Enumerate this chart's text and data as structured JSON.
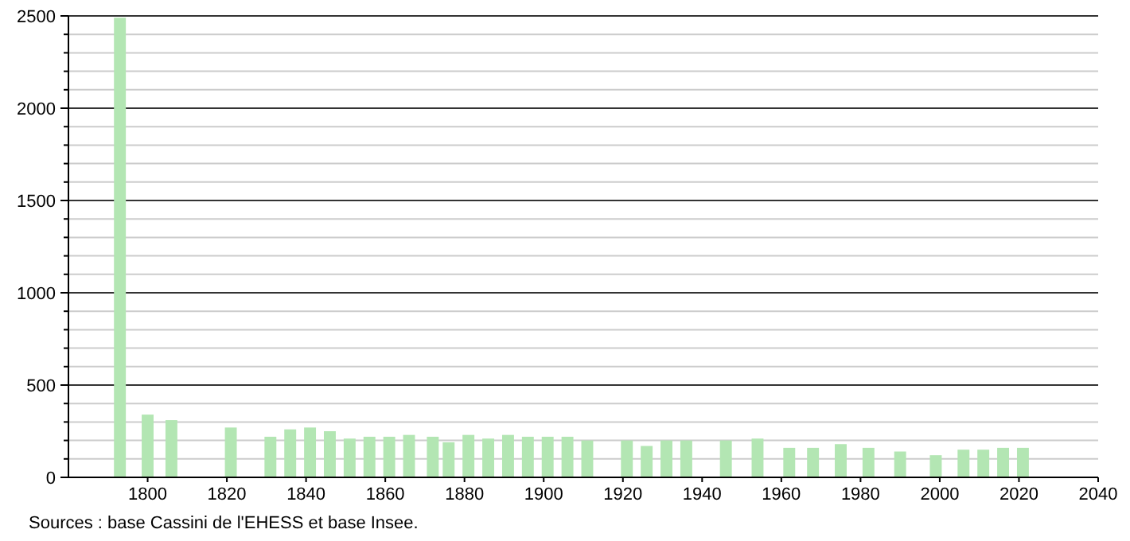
{
  "chart_data": {
    "type": "bar",
    "x": [
      1793,
      1800,
      1806,
      1821,
      1831,
      1836,
      1841,
      1846,
      1851,
      1856,
      1861,
      1866,
      1872,
      1876,
      1881,
      1886,
      1891,
      1896,
      1901,
      1906,
      1911,
      1921,
      1926,
      1931,
      1936,
      1946,
      1954,
      1962,
      1968,
      1975,
      1982,
      1990,
      1999,
      2006,
      2011,
      2016,
      2021
    ],
    "values": [
      2490,
      340,
      310,
      270,
      220,
      260,
      270,
      250,
      210,
      220,
      220,
      230,
      220,
      190,
      230,
      210,
      230,
      220,
      220,
      220,
      200,
      200,
      170,
      200,
      200,
      200,
      210,
      160,
      160,
      180,
      160,
      140,
      120,
      150,
      150,
      160,
      160
    ],
    "color": "#b3e6b3",
    "xlim": [
      1780,
      2040
    ],
    "xticks": [
      1800,
      1820,
      1840,
      1860,
      1880,
      1900,
      1920,
      1940,
      1960,
      1980,
      2000,
      2020,
      2040
    ],
    "ylim": [
      0,
      2500
    ],
    "yticks": [
      0,
      {
        "value": 100,
        "label": null
      },
      {
        "value": 200,
        "label": null
      },
      {
        "value": 300,
        "label": null
      },
      {
        "value": 400,
        "label": null
      },
      500,
      {
        "value": 600,
        "label": null
      },
      {
        "value": 700,
        "label": null
      },
      {
        "value": 800,
        "label": null
      },
      {
        "value": 900,
        "label": null
      },
      1000,
      {
        "value": 1100,
        "label": null
      },
      {
        "value": 1200,
        "label": null
      },
      {
        "value": 1300,
        "label": null
      },
      {
        "value": 1400,
        "label": null
      },
      1500,
      {
        "value": 1600,
        "label": null
      },
      {
        "value": 1700,
        "label": null
      },
      {
        "value": 1800,
        "label": null
      },
      {
        "value": 1900,
        "label": null
      },
      2000,
      {
        "value": 2100,
        "label": null
      },
      {
        "value": 2200,
        "label": null
      },
      {
        "value": 2300,
        "label": null
      },
      {
        "value": 2400,
        "label": null
      },
      2500
    ],
    "grid": true,
    "annotations": [
      "Sources : base Cassini de l'EHESS et base Insee."
    ]
  }
}
